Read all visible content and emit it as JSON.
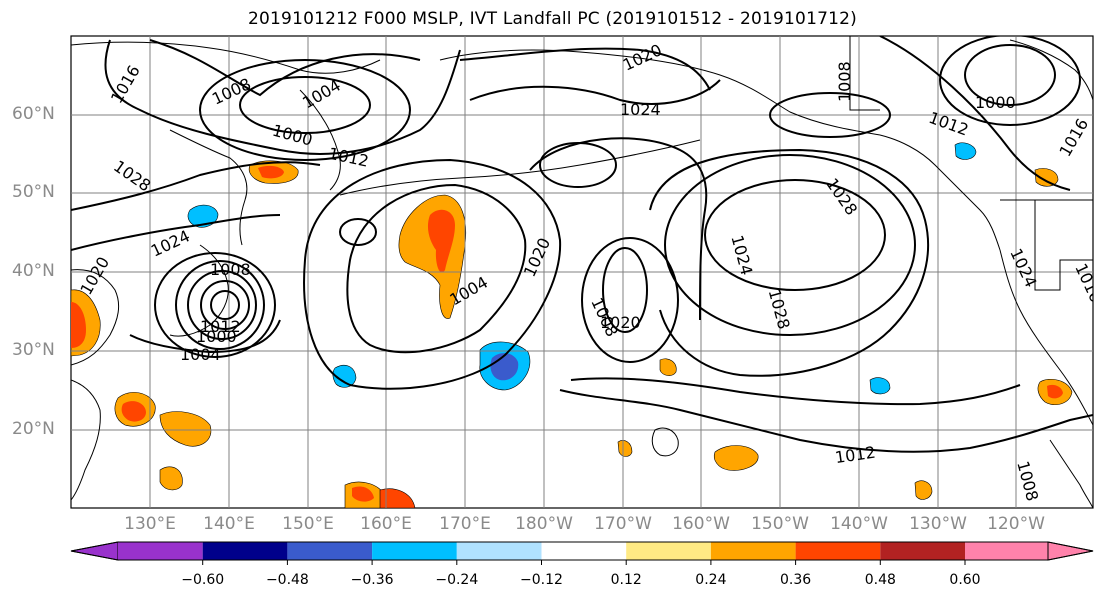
{
  "title": "2019101212 F000 MSLP, IVT Landfall PC (2019101512 - 2019101712)",
  "lat_labels": [
    "60°N",
    "50°N",
    "40°N",
    "30°N",
    "20°N"
  ],
  "lon_labels": [
    "130°E",
    "140°E",
    "150°E",
    "160°E",
    "170°E",
    "180°W",
    "170°W",
    "160°W",
    "150°W",
    "140°W",
    "130°W",
    "120°W"
  ],
  "contour_labels": [
    "1016",
    "1008",
    "1004",
    "1000",
    "1012",
    "1020",
    "1024",
    "1028",
    "1000",
    "1012",
    "1016",
    "1028",
    "1024",
    "1020",
    "1008",
    "1004",
    "1008",
    "1020",
    "1024",
    "1028",
    "1024",
    "1016",
    "1020",
    "1012",
    "1008",
    "1008",
    "1000",
    "1004",
    "1012"
  ],
  "colorbar": {
    "ticks": [
      "−0.60",
      "−0.48",
      "−0.36",
      "−0.24",
      "−0.12",
      "0.12",
      "0.24",
      "0.36",
      "0.48",
      "0.60"
    ],
    "colors": [
      "#9932cc",
      "#00008b",
      "#3a5bcc",
      "#00bfff",
      "#b0e2ff",
      "#ffffff",
      "#ffea84",
      "#ffa500",
      "#ff4500",
      "#b22222",
      "#ff82ab"
    ]
  },
  "legend_colors": {
    "land_outline": "#000000",
    "contour": "#000000",
    "grid": "#808080"
  }
}
